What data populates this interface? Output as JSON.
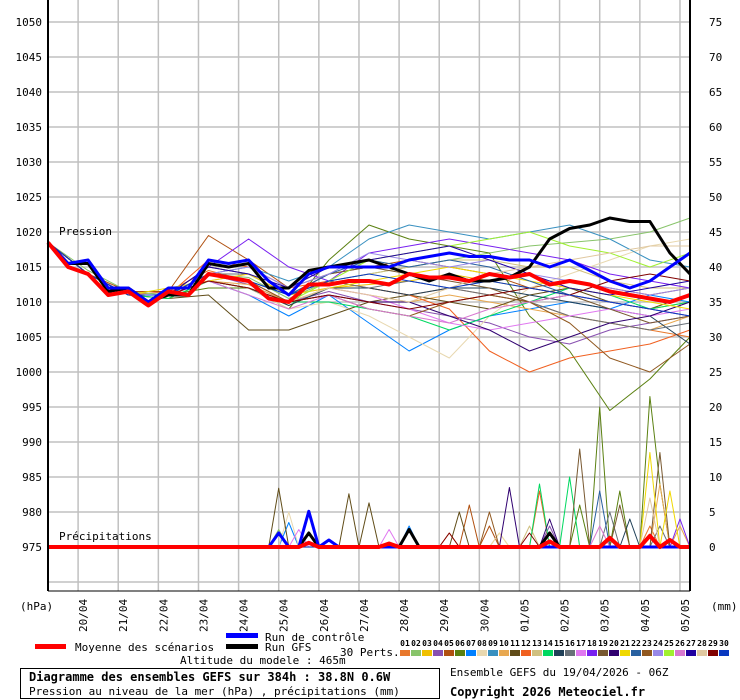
{
  "chart_data": {
    "type": "line",
    "title": "Diagramme des ensembles GEFS sur 384h : 38.8N 0.6W",
    "subtitle": "Pression au niveau de la mer (hPa) , précipitations (mm)",
    "run_info": "Ensemble GEFS du 19/04/2026 - 06Z",
    "copyright": "Copyright 2026 Meteociel.fr",
    "altitude": "Altitude du modele : 465m",
    "ylabel_left": "(hPa)",
    "ylabel_right": "(mm)",
    "label_pressure": "Pression",
    "label_precip": "Précipitations",
    "ylim_left": [
      970,
      1050
    ],
    "ylim_right": [
      0,
      75
    ],
    "left_ticks": [
      "1050",
      "1045",
      "1040",
      "1035",
      "1030",
      "1025",
      "1020",
      "1015",
      "1010",
      "1005",
      "1000",
      "995",
      "990",
      "985",
      "980",
      "975"
    ],
    "right_ticks": [
      "75",
      "70",
      "65",
      "60",
      "55",
      "50",
      "45",
      "40",
      "35",
      "30",
      "25",
      "20",
      "15",
      "10",
      "5",
      "0"
    ],
    "x_ticks": [
      "20/04",
      "21/04",
      "22/04",
      "23/04",
      "24/04",
      "25/04",
      "26/04",
      "27/04",
      "28/04",
      "29/04",
      "30/04",
      "01/05",
      "02/05",
      "03/05",
      "04/05",
      "05/05"
    ],
    "xlim_hours": [
      0,
      384
    ],
    "grid": true,
    "legend": {
      "mean": "Moyenne des scénarios",
      "control": "Run de contrôle",
      "gfs": "Run GFS",
      "perts": "30 Perts."
    },
    "colors": {
      "mean": "#ff0000",
      "control": "#0000ff",
      "gfs": "#000000"
    },
    "main_step_hours": 12,
    "pert_step_hours": 24,
    "mean_pressure": [
      1018.5,
      1015,
      1014,
      1011,
      1011.5,
      1009.5,
      1011.5,
      1011,
      1014,
      1013.5,
      1013,
      1010.5,
      1010,
      1012.5,
      1012.5,
      1013,
      1013,
      1012.5,
      1014,
      1013.5,
      1013.5,
      1013,
      1014,
      1013.5,
      1014,
      1012.5,
      1013,
      1012.5,
      1011.5,
      1011,
      1010.5,
      1010,
      1011
    ],
    "control_pressure": [
      1018.5,
      1015.5,
      1016,
      1012,
      1012,
      1010,
      1012,
      1012,
      1016,
      1015.5,
      1016,
      1013,
      1011,
      1014,
      1015,
      1015,
      1015,
      1015,
      1016,
      1016.5,
      1017,
      1016.5,
      1016.5,
      1016,
      1016,
      1015,
      1016,
      1014.5,
      1013,
      1012,
      1013,
      1015,
      1017
    ],
    "gfs_pressure": [
      1018.5,
      1015.5,
      1015.5,
      1011.5,
      1012,
      1010,
      1011,
      1011,
      1015.5,
      1015,
      1015.5,
      1012,
      1012,
      1014.5,
      1015,
      1015.5,
      1016,
      1015,
      1014,
      1013,
      1014,
      1013,
      1013,
      1013.5,
      1015,
      1019,
      1020.5,
      1021,
      1022,
      1021.5,
      1021.5,
      1017,
      1014
    ],
    "mean_precip": [
      [
        156,
        0.6
      ],
      [
        204,
        0.5
      ],
      [
        300,
        0.8
      ],
      [
        336,
        1.3
      ],
      [
        360,
        1.6
      ],
      [
        372,
        1
      ]
    ],
    "control_precip": [
      [
        138,
        2
      ],
      [
        156,
        5.1
      ],
      [
        168,
        1
      ]
    ],
    "gfs_precip": [
      [
        156,
        2
      ],
      [
        216,
        2.5
      ],
      [
        300,
        2
      ]
    ],
    "perturbations": [
      {
        "id": "01",
        "color": "#e8782c",
        "pressure": [
          1018.5,
          1014,
          1011,
          1011.5,
          1014.5,
          1013,
          1010,
          1012,
          1012,
          1011,
          1012,
          1011,
          1010,
          1008,
          1007,
          1006,
          1005
        ],
        "precip": [
          [
            240,
            2
          ],
          [
            360,
            3
          ]
        ]
      },
      {
        "id": "02",
        "color": "#88c46a",
        "pressure": [
          1018.5,
          1014.5,
          1011.5,
          1011,
          1014,
          1013.5,
          1010.5,
          1013,
          1014,
          1015,
          1016,
          1017,
          1018,
          1018.5,
          1019,
          1020,
          1022
        ],
        "precip": [
          [
            138,
            2.5
          ]
        ]
      },
      {
        "id": "03",
        "color": "#f0c000",
        "pressure": [
          1018.5,
          1014,
          1011,
          1010.5,
          1013,
          1012,
          1009.5,
          1012,
          1012.5,
          1013,
          1014,
          1013,
          1012,
          1011,
          1010,
          1009,
          1010
        ],
        "precip": [
          [
            270,
            2
          ]
        ]
      },
      {
        "id": "04",
        "color": "#8850b0",
        "pressure": [
          1018.5,
          1014,
          1011,
          1011,
          1014,
          1012.5,
          1010,
          1011.5,
          1010,
          1009,
          1008,
          1007,
          1005,
          1004,
          1006,
          1007,
          1008
        ],
        "precip": [
          [
            300,
            3
          ]
        ]
      },
      {
        "id": "05",
        "color": "#b05010",
        "pressure": [
          1018.5,
          1014,
          1011.5,
          1011.5,
          1019.5,
          1016,
          1012,
          1014,
          1015,
          1016,
          1015,
          1014,
          1012,
          1013,
          1012,
          1011,
          1012
        ],
        "precip": [
          [
            252,
            6
          ],
          [
            264,
            3
          ]
        ]
      },
      {
        "id": "06",
        "color": "#5a8010",
        "pressure": [
          1018.5,
          1014,
          1011,
          1011,
          1012,
          1012,
          1009,
          1016,
          1021,
          1019,
          1018,
          1017,
          1008,
          1003,
          994.5,
          999,
          1005
        ],
        "precip": [
          [
            318,
            6
          ],
          [
            330,
            20
          ],
          [
            342,
            8
          ],
          [
            360,
            21.5
          ],
          [
            366,
            9
          ]
        ]
      },
      {
        "id": "07",
        "color": "#0080ff",
        "pressure": [
          1018.5,
          1014,
          1011,
          1011,
          1013,
          1011,
          1008,
          1011,
          1007,
          1003,
          1006,
          1008,
          1009,
          1010,
          1009,
          1011,
          1010
        ],
        "precip": [
          [
            144,
            3.5
          ],
          [
            216,
            3
          ]
        ]
      },
      {
        "id": "08",
        "color": "#e8d8b0",
        "pressure": [
          1018.5,
          1014,
          1011,
          1011,
          1013,
          1012,
          1009,
          1010,
          1008,
          1005,
          1002,
          1008,
          1012,
          1014,
          1016,
          1018,
          1019
        ],
        "precip": [
          [
            144,
            5
          ],
          [
            270,
            2
          ]
        ]
      },
      {
        "id": "09",
        "color": "#3890c0",
        "pressure": [
          1018.5,
          1014,
          1011,
          1011,
          1014,
          1015,
          1013,
          1015,
          1019,
          1021,
          1020,
          1019,
          1020,
          1021,
          1019,
          1016,
          1015
        ],
        "precip": []
      },
      {
        "id": "10",
        "color": "#e8a850",
        "pressure": [
          1018.5,
          1014,
          1011,
          1011,
          1013,
          1012.5,
          1010,
          1012,
          1011,
          1010,
          1011,
          1010,
          1009,
          1008,
          1007,
          1006,
          1008
        ],
        "precip": [
          [
            366,
            9
          ],
          [
            378,
            3
          ]
        ]
      },
      {
        "id": "11",
        "color": "#604c18",
        "pressure": [
          1018.5,
          1014,
          1011,
          1010.5,
          1011,
          1006,
          1006,
          1008,
          1010,
          1011,
          1010,
          1009,
          1011,
          1012,
          1010,
          1009,
          1011
        ],
        "precip": [
          [
            138,
            8.4
          ],
          [
            180,
            7.6
          ],
          [
            192,
            6.3
          ],
          [
            246,
            5
          ]
        ]
      },
      {
        "id": "12",
        "color": "#f06020",
        "pressure": [
          1018.5,
          1014,
          1011,
          1011,
          1016,
          1015,
          1012,
          1013,
          1012,
          1011,
          1009,
          1003,
          1000,
          1002,
          1003,
          1004,
          1006
        ],
        "precip": [
          [
            294,
            8
          ]
        ]
      },
      {
        "id": "13",
        "color": "#d0c080",
        "pressure": [
          1018.5,
          1014,
          1011,
          1011,
          1014,
          1013,
          1011,
          1013,
          1014,
          1015,
          1016,
          1016,
          1015,
          1015,
          1013,
          1012,
          1012
        ],
        "precip": [
          [
            288,
            3
          ]
        ]
      },
      {
        "id": "14",
        "color": "#00d860",
        "pressure": [
          1018.5,
          1014,
          1011,
          1010.5,
          1013,
          1012,
          1010,
          1010,
          1009,
          1008,
          1006,
          1008,
          1010,
          1012,
          1011,
          1009,
          1010
        ],
        "precip": [
          [
            294,
            9
          ],
          [
            311,
            10
          ]
        ]
      },
      {
        "id": "15",
        "color": "#204058",
        "pressure": [
          1018.5,
          1014,
          1011,
          1011,
          1013,
          1012,
          1009.5,
          1012,
          1012,
          1011,
          1012,
          1012,
          1011,
          1010,
          1009,
          1008,
          1004
        ],
        "precip": [
          [
            348,
            4
          ]
        ]
      },
      {
        "id": "16",
        "color": "#687078",
        "pressure": [
          1018.5,
          1014,
          1011,
          1011,
          1014,
          1014,
          1011,
          1013,
          1012,
          1013,
          1012,
          1011,
          1010,
          1008,
          1007,
          1006,
          1007
        ],
        "precip": [
          [
            336,
            5
          ],
          [
            366,
            3
          ]
        ]
      },
      {
        "id": "17",
        "color": "#e078f0",
        "pressure": [
          1018.5,
          1014,
          1011,
          1011,
          1013,
          1014,
          1011,
          1012,
          1011,
          1009,
          1007,
          1006,
          1007,
          1008,
          1009,
          1008,
          1009
        ],
        "precip": [
          [
            150,
            2.5
          ],
          [
            204,
            2.5
          ]
        ]
      },
      {
        "id": "18",
        "color": "#7820f0",
        "pressure": [
          1018.5,
          1014,
          1011,
          1011,
          1015,
          1019,
          1015,
          1013,
          1017,
          1018,
          1019,
          1018,
          1017,
          1016,
          1014,
          1013,
          1012
        ],
        "precip": [
          [
            378,
            4
          ]
        ]
      },
      {
        "id": "19",
        "color": "#785830",
        "pressure": [
          1018.5,
          1014,
          1011,
          1011,
          1015,
          1014,
          1011,
          1014,
          1015,
          1014,
          1013,
          1012,
          1010,
          1011,
          1009,
          1007,
          1008
        ],
        "precip": [
          [
            317,
            14
          ],
          [
            341,
            6
          ],
          [
            366,
            13.5
          ]
        ]
      },
      {
        "id": "20",
        "color": "#300070",
        "pressure": [
          1018.5,
          1014,
          1011,
          1011,
          1013,
          1012,
          1010,
          1011,
          1010,
          1010,
          1008,
          1006,
          1003,
          1005,
          1007,
          1008,
          1010
        ],
        "precip": [
          [
            275,
            8.5
          ],
          [
            300,
            4
          ]
        ]
      },
      {
        "id": "21",
        "color": "#f0d800",
        "pressure": [
          1018.5,
          1014,
          1011,
          1012,
          1013,
          1014,
          1011,
          1012,
          1013,
          1014,
          1015,
          1014,
          1013,
          1012,
          1011,
          1010,
          1009
        ],
        "precip": [
          [
            360,
            13.5
          ],
          [
            372,
            8
          ]
        ]
      },
      {
        "id": "22",
        "color": "#2860a0",
        "pressure": [
          1018.5,
          1014,
          1011,
          1011,
          1014,
          1013,
          1011,
          1014,
          1016,
          1015,
          1016,
          1015,
          1013,
          1011,
          1010,
          1009,
          1008
        ],
        "precip": [
          [
            327,
            8
          ]
        ]
      },
      {
        "id": "23",
        "color": "#905820",
        "pressure": [
          1018.5,
          1014,
          1011,
          1011,
          1014,
          1013,
          1010,
          1011,
          1009,
          1008,
          1010,
          1011,
          1010,
          1007,
          1002,
          1000,
          1004
        ],
        "precip": [
          [
            264,
            5
          ]
        ]
      },
      {
        "id": "24",
        "color": "#9888e8",
        "pressure": [
          1018.5,
          1014,
          1011,
          1011,
          1014,
          1015,
          1012,
          1014,
          1017,
          1016,
          1015,
          1016,
          1014,
          1013,
          1012,
          1011,
          1012
        ],
        "precip": []
      },
      {
        "id": "25",
        "color": "#a0f030",
        "pressure": [
          1018.5,
          1014,
          1011,
          1011,
          1013,
          1012,
          1010,
          1013,
          1016,
          1017,
          1018,
          1019,
          1020,
          1018,
          1017,
          1015,
          1017
        ],
        "precip": []
      },
      {
        "id": "26",
        "color": "#d878d0",
        "pressure": [
          1018.5,
          1014,
          1011,
          1011,
          1013,
          1011,
          1009,
          1011,
          1009,
          1008,
          1007,
          1009,
          1010,
          1011,
          1010,
          1009,
          1008
        ],
        "precip": [
          [
            330,
            3
          ]
        ]
      },
      {
        "id": "27",
        "color": "#2000a0",
        "pressure": [
          1018.5,
          1014,
          1011,
          1011,
          1015,
          1014,
          1012,
          1015,
          1016,
          1017,
          1018,
          1016,
          1014,
          1012,
          1011,
          1012,
          1013
        ],
        "precip": []
      },
      {
        "id": "28",
        "color": "#e0c8a0",
        "pressure": [
          1018.5,
          1014,
          1011,
          1011,
          1013,
          1012,
          1010,
          1012,
          1011,
          1010,
          1012,
          1014,
          1015,
          1016,
          1017,
          1018,
          1018
        ],
        "precip": [
          [
            360,
            7
          ]
        ]
      },
      {
        "id": "29",
        "color": "#800000",
        "pressure": [
          1018.5,
          1014,
          1011,
          1011,
          1013,
          1012,
          1010,
          1011,
          1010,
          1009,
          1010,
          1011,
          1012,
          1011,
          1013,
          1014,
          1013
        ],
        "precip": [
          [
            240,
            2
          ],
          [
            288,
            2
          ]
        ]
      },
      {
        "id": "30",
        "color": "#0838c0",
        "pressure": [
          1018.5,
          1014,
          1011,
          1011,
          1014,
          1013,
          1011,
          1013,
          1014,
          1013,
          1012,
          1013,
          1012,
          1011,
          1010,
          1009,
          1008
        ],
        "precip": []
      }
    ]
  }
}
